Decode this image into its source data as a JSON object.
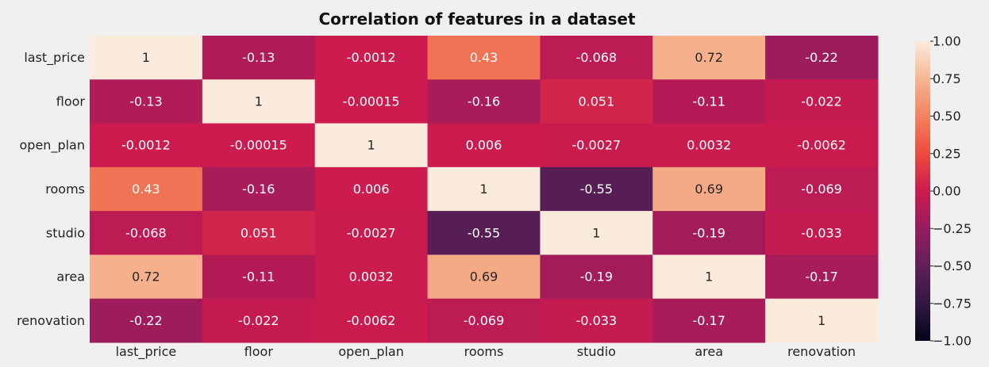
{
  "chart_data": {
    "type": "heatmap",
    "title": "Correlation of features in a dataset",
    "row_labels": [
      "last_price",
      "floor",
      "open_plan",
      "rooms",
      "studio",
      "area",
      "renovation"
    ],
    "col_labels": [
      "last_price",
      "floor",
      "open_plan",
      "rooms",
      "studio",
      "area",
      "renovation"
    ],
    "values": [
      [
        1,
        -0.13,
        -0.0012,
        0.43,
        -0.068,
        0.72,
        -0.22
      ],
      [
        -0.13,
        1,
        -0.00015,
        -0.16,
        0.051,
        -0.11,
        -0.022
      ],
      [
        -0.0012,
        -0.00015,
        1,
        0.006,
        -0.0027,
        0.0032,
        -0.0062
      ],
      [
        0.43,
        -0.16,
        0.006,
        1,
        -0.55,
        0.69,
        -0.069
      ],
      [
        -0.068,
        0.051,
        -0.0027,
        -0.55,
        1,
        -0.19,
        -0.033
      ],
      [
        0.72,
        -0.11,
        0.0032,
        0.69,
        -0.19,
        1,
        -0.17
      ],
      [
        -0.22,
        -0.022,
        -0.0062,
        -0.069,
        -0.033,
        -0.17,
        1
      ]
    ],
    "annotations": [
      [
        "1",
        "-0.13",
        "-0.0012",
        "0.43",
        "-0.068",
        "0.72",
        "-0.22"
      ],
      [
        "-0.13",
        "1",
        "-0.00015",
        "-0.16",
        "0.051",
        "-0.11",
        "-0.022"
      ],
      [
        "-0.0012",
        "-0.00015",
        "1",
        "0.006",
        "-0.0027",
        "0.0032",
        "-0.0062"
      ],
      [
        "0.43",
        "-0.16",
        "0.006",
        "1",
        "-0.55",
        "0.69",
        "-0.069"
      ],
      [
        "-0.068",
        "0.051",
        "-0.0027",
        "-0.55",
        "1",
        "-0.19",
        "-0.033"
      ],
      [
        "0.72",
        "-0.11",
        "0.0032",
        "0.69",
        "-0.19",
        "1",
        "-0.17"
      ],
      [
        "-0.22",
        "-0.022",
        "-0.0062",
        "-0.069",
        "-0.033",
        "-0.17",
        "1"
      ]
    ],
    "vmin": -1,
    "vmax": 1,
    "colormap": "rocket",
    "colorbar_ticks": [
      "1.00",
      "0.75",
      "0.50",
      "0.25",
      "0.00",
      "−0.25",
      "−0.50",
      "−0.75",
      "−1.00"
    ],
    "colorbar_tick_values": [
      1,
      0.75,
      0.5,
      0.25,
      0,
      -0.25,
      -0.5,
      -0.75,
      -1
    ],
    "legend": "right"
  }
}
